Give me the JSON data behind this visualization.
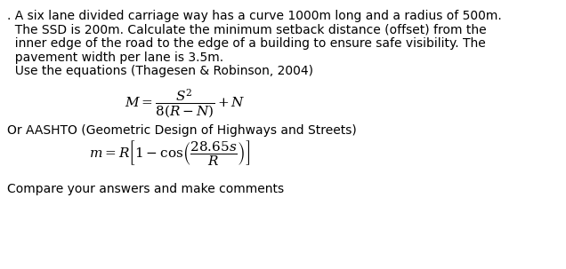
{
  "bg_color": "#ffffff",
  "text_color": "#000000",
  "lines": [
    ". A six lane divided carriage way has a curve 1000m long and a radius of 500m.",
    "  The SSD is 200m. Calculate the minimum setback distance (offset) from the",
    "  inner edge of the road to the edge of a building to ensure safe visibility. The",
    "  pavement width per lane is 3.5m.",
    "  Use the equations (Thagesen & Robinson, 2004)"
  ],
  "equation1": "$M = \\dfrac{S^2}{8(R - N)} + N$",
  "aashto_line": "Or AASHTO (Geometric Design of Highways and Streets)",
  "equation2": "$m = R\\left[1 - \\cos\\!\\left(\\dfrac{28.65s}{R}\\right)\\right]$",
  "footer": "Compare your answers and make comments",
  "para_fontsize": 10.0,
  "eq1_fontsize": 11.0,
  "eq2_fontsize": 11.0,
  "aashto_fontsize": 10.0,
  "footer_fontsize": 10.0,
  "fig_width": 6.36,
  "fig_height": 3.03,
  "dpi": 100
}
